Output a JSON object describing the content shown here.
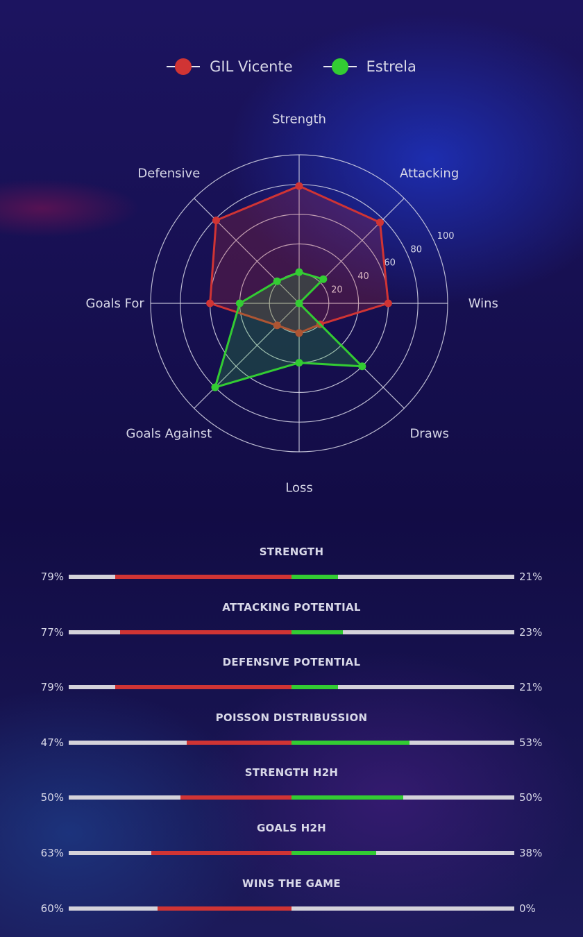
{
  "colors": {
    "home": "#d03434",
    "away": "#33cc33",
    "grid": "#d8d8e8",
    "track": "#d4d2da"
  },
  "legend": [
    {
      "label": "GIL Vicente",
      "icon": "circle-marker"
    },
    {
      "label": "Estrela",
      "icon": "circle-marker"
    }
  ],
  "chart_data": {
    "type": "radar",
    "axes": [
      "Strength",
      "Attacking",
      "Wins",
      "Draws",
      "Loss",
      "Goals Against",
      "Goals For",
      "Defensive"
    ],
    "radial_range": [
      0,
      100
    ],
    "radial_ticks": [
      20,
      40,
      60,
      80,
      100
    ],
    "series": [
      {
        "name": "GIL Vicente",
        "values": [
          79,
          77,
          60,
          20,
          20,
          21,
          60,
          79
        ]
      },
      {
        "name": "Estrela",
        "values": [
          21,
          23,
          0,
          60,
          40,
          80,
          40,
          21
        ]
      }
    ],
    "legend_position": "top"
  },
  "comparisons": [
    {
      "title": "STRENGTH",
      "home": 79,
      "away": 21,
      "home_label": "79%",
      "away_label": "21%"
    },
    {
      "title": "ATTACKING POTENTIAL",
      "home": 77,
      "away": 23,
      "home_label": "77%",
      "away_label": "23%"
    },
    {
      "title": "DEFENSIVE POTENTIAL",
      "home": 79,
      "away": 21,
      "home_label": "79%",
      "away_label": "21%"
    },
    {
      "title": "POISSON DISTRIBUSSION",
      "home": 47,
      "away": 53,
      "home_label": "47%",
      "away_label": "53%"
    },
    {
      "title": "STRENGTH H2H",
      "home": 50,
      "away": 50,
      "home_label": "50%",
      "away_label": "50%"
    },
    {
      "title": "GOALS H2H",
      "home": 63,
      "away": 38,
      "home_label": "63%",
      "away_label": "38%"
    },
    {
      "title": "WINS THE GAME",
      "home": 60,
      "away": 0,
      "home_label": "60%",
      "away_label": "0%"
    }
  ]
}
